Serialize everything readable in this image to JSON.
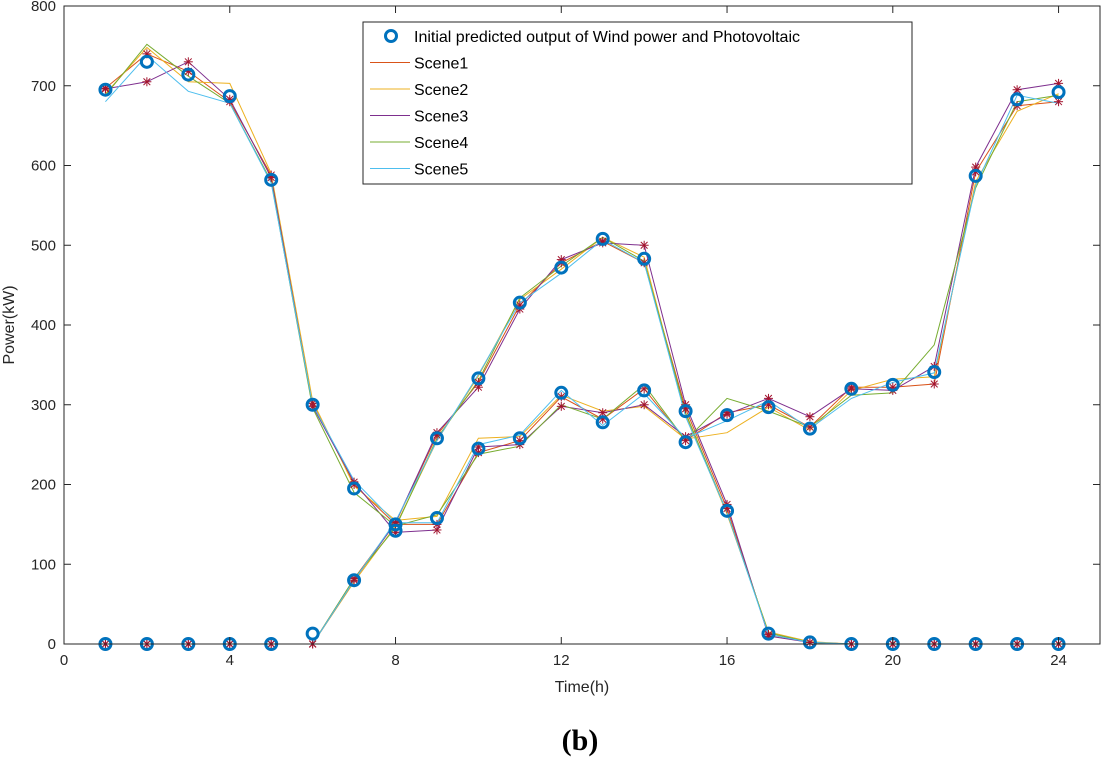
{
  "chart_data": {
    "type": "line",
    "title": "",
    "xlabel": "Time(h)",
    "ylabel": "Power(kW)",
    "panel_label": "(b)",
    "xlim": [
      0,
      25
    ],
    "ylim": [
      0,
      800
    ],
    "xticks": [
      0,
      4,
      8,
      12,
      16,
      20,
      24
    ],
    "yticks": [
      0,
      100,
      200,
      300,
      400,
      500,
      600,
      700,
      800
    ],
    "grid": false,
    "legend_position": "top-center",
    "x": [
      1,
      2,
      3,
      4,
      5,
      6,
      7,
      8,
      9,
      10,
      11,
      12,
      13,
      14,
      15,
      16,
      17,
      18,
      19,
      20,
      21,
      22,
      23,
      24
    ],
    "initial": {
      "name": "Initial predicted output of Wind power and Photovoltaic",
      "color": "#0072BD",
      "wind": [
        695,
        730,
        714,
        687,
        582,
        300,
        195,
        142,
        158,
        245,
        258,
        315,
        278,
        318,
        253,
        287,
        297,
        270,
        320,
        325,
        341,
        587,
        683,
        692
      ],
      "pv": [
        0,
        0,
        0,
        0,
        0,
        13,
        80,
        150,
        258,
        333,
        428,
        472,
        508,
        483,
        292,
        167,
        13,
        2,
        0,
        0,
        0,
        0,
        0,
        0
      ]
    },
    "sample_marker_color": "#A2142F",
    "series": [
      {
        "name": "Scene1",
        "color": "#D95319",
        "wind": [
          697,
          740,
          718,
          680,
          588,
          302,
          200,
          150,
          150,
          240,
          255,
          310,
          282,
          320,
          255,
          290,
          300,
          272,
          322,
          322,
          326,
          592,
          675,
          680
        ],
        "pv": [
          0,
          0,
          0,
          0,
          0,
          0,
          82,
          152,
          262,
          328,
          425,
          478,
          505,
          478,
          295,
          170,
          12,
          2,
          0,
          0,
          0,
          0,
          0,
          0
        ]
      },
      {
        "name": "Scene2",
        "color": "#EDB120",
        "wind": [
          690,
          748,
          705,
          703,
          590,
          305,
          198,
          155,
          160,
          258,
          260,
          312,
          292,
          298,
          257,
          265,
          297,
          268,
          318,
          332,
          335,
          580,
          668,
          690
        ],
        "pv": [
          0,
          0,
          0,
          0,
          0,
          0,
          78,
          148,
          255,
          336,
          432,
          470,
          510,
          485,
          288,
          163,
          15,
          3,
          0,
          0,
          0,
          0,
          0,
          0
        ]
      },
      {
        "name": "Scene3",
        "color": "#7E2F8E",
        "wind": [
          696,
          705,
          730,
          683,
          585,
          298,
          203,
          140,
          143,
          247,
          250,
          298,
          290,
          300,
          260,
          288,
          308,
          285,
          320,
          318,
          348,
          598,
          695,
          703
        ],
        "pv": [
          0,
          0,
          0,
          0,
          0,
          0,
          80,
          152,
          265,
          322,
          420,
          482,
          503,
          500,
          300,
          175,
          10,
          2,
          0,
          0,
          0,
          0,
          0,
          0
        ]
      },
      {
        "name": "Scene4",
        "color": "#77AC30",
        "wind": [
          688,
          752,
          712,
          678,
          580,
          296,
          190,
          148,
          162,
          238,
          248,
          300,
          282,
          325,
          255,
          308,
          292,
          272,
          312,
          315,
          375,
          572,
          680,
          688
        ],
        "pv": [
          0,
          0,
          0,
          0,
          0,
          0,
          82,
          146,
          258,
          330,
          434,
          474,
          510,
          480,
          290,
          165,
          14,
          2,
          0,
          0,
          0,
          0,
          0,
          0
        ]
      },
      {
        "name": "Scene5",
        "color": "#4DBEEE",
        "wind": [
          680,
          738,
          693,
          678,
          578,
          300,
          205,
          152,
          152,
          250,
          262,
          318,
          274,
          314,
          258,
          280,
          305,
          270,
          308,
          328,
          340,
          575,
          688,
          678
        ],
        "pv": [
          0,
          0,
          0,
          0,
          0,
          0,
          80,
          154,
          255,
          338,
          428,
          465,
          507,
          478,
          285,
          165,
          12,
          2,
          0,
          0,
          0,
          0,
          0,
          0
        ]
      }
    ]
  }
}
